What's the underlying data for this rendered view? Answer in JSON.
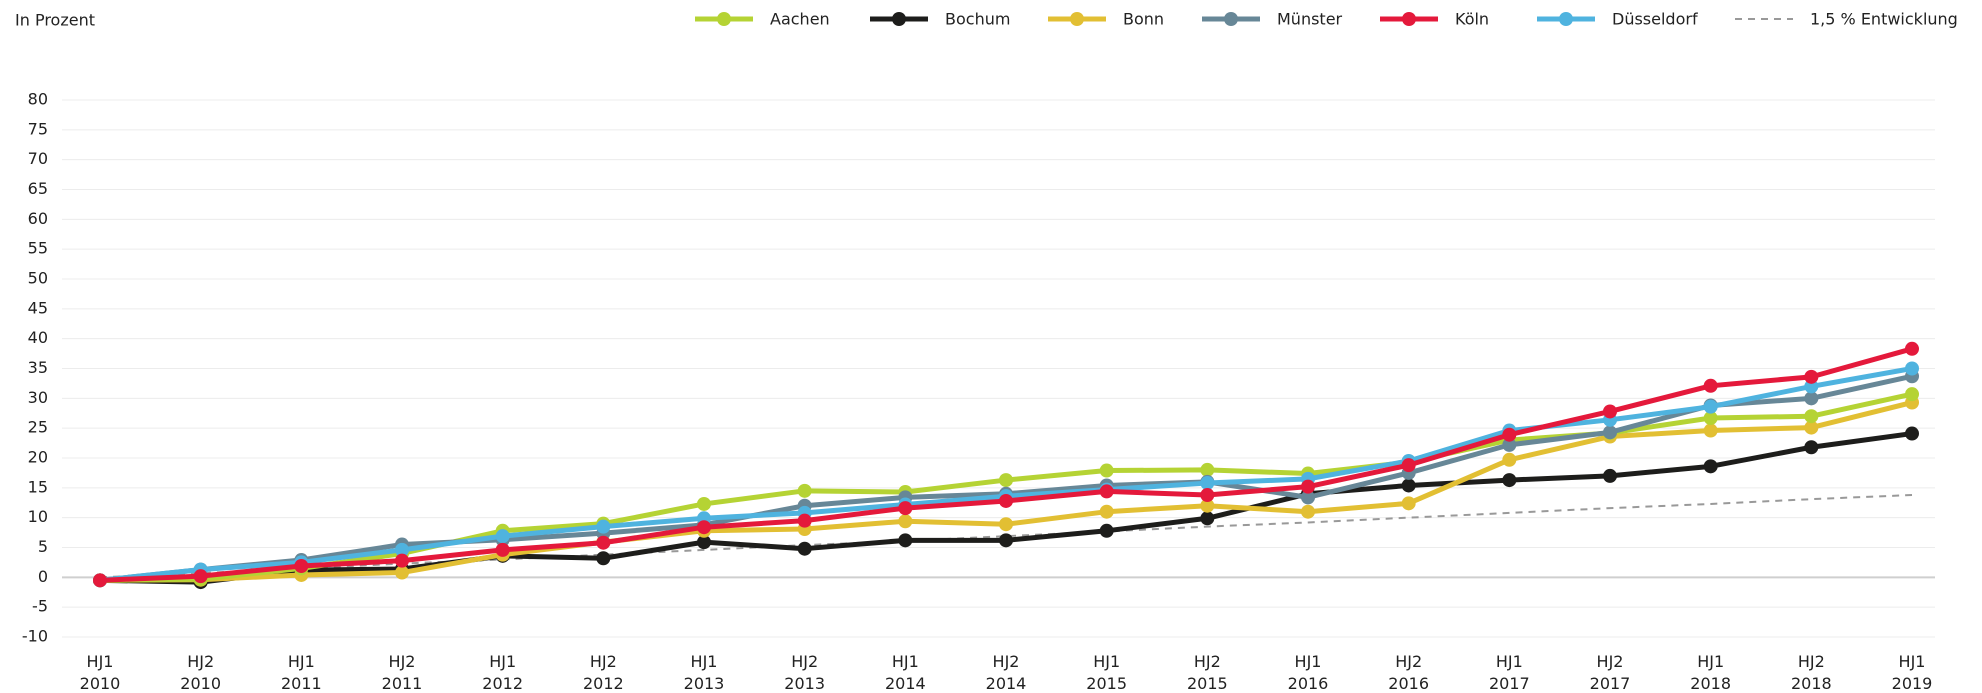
{
  "chart_data": {
    "type": "line",
    "y_label": "In Prozent",
    "categories": [
      [
        "HJ1",
        "2010"
      ],
      [
        "HJ2",
        "2010"
      ],
      [
        "HJ1",
        "2011"
      ],
      [
        "HJ2",
        "2011"
      ],
      [
        "HJ1",
        "2012"
      ],
      [
        "HJ2",
        "2012"
      ],
      [
        "HJ1",
        "2013"
      ],
      [
        "HJ2",
        "2013"
      ],
      [
        "HJ1",
        "2014"
      ],
      [
        "HJ2",
        "2014"
      ],
      [
        "HJ1",
        "2015"
      ],
      [
        "HJ2",
        "2015"
      ],
      [
        "HJ1",
        "2016"
      ],
      [
        "HJ2",
        "2016"
      ],
      [
        "HJ1",
        "2017"
      ],
      [
        "HJ2",
        "2017"
      ],
      [
        "HJ1",
        "2018"
      ],
      [
        "HJ2",
        "2018"
      ],
      [
        "HJ1",
        "2019"
      ]
    ],
    "series": [
      {
        "name": "1,5 % Entwicklung",
        "color": "#999999",
        "dashed": true,
        "markers": false,
        "values": [
          0,
          0.7,
          1.5,
          2.3,
          3.0,
          3.8,
          4.6,
          5.4,
          6.1,
          6.9,
          7.7,
          8.5,
          9.2,
          10.0,
          10.8,
          11.6,
          12.3,
          13.1,
          13.8
        ]
      },
      {
        "name": "Bochum",
        "color": "#1d1d1b",
        "values": [
          -0.5,
          -0.8,
          1.2,
          1.4,
          3.6,
          3.2,
          5.9,
          4.8,
          6.2,
          6.2,
          7.8,
          9.9,
          14,
          15.4,
          16.3,
          17,
          18.6,
          21.8,
          24.1
        ]
      },
      {
        "name": "Bonn",
        "color": "#e2bf33",
        "values": [
          -0.5,
          -0.4,
          0.4,
          0.8,
          3.8,
          5.9,
          7.8,
          8.1,
          9.4,
          8.9,
          11,
          12,
          11,
          12.4,
          19.7,
          23.6,
          24.6,
          25.1,
          29.3
        ]
      },
      {
        "name": "Aachen",
        "color": "#b5d334",
        "values": [
          -0.5,
          -0.3,
          1.5,
          4,
          7.8,
          9,
          12.3,
          14.5,
          14.3,
          16.3,
          17.9,
          18,
          17.4,
          19.3,
          23,
          24.2,
          26.7,
          27,
          30.7
        ]
      },
      {
        "name": "Münster",
        "color": "#678797",
        "values": [
          -0.5,
          1.3,
          2.9,
          5.5,
          6.3,
          7.4,
          8.8,
          12,
          13.4,
          14,
          15.4,
          16,
          13.4,
          17.5,
          22.2,
          24.3,
          28.8,
          30,
          33.7
        ]
      },
      {
        "name": "Düsseldorf",
        "color": "#4fb3df",
        "values": [
          -0.5,
          1.3,
          2.5,
          4.6,
          6.9,
          8.5,
          9.9,
          10.8,
          12.2,
          13.6,
          14.7,
          15.8,
          16.5,
          19.5,
          24.6,
          26.4,
          28.6,
          32,
          35
        ]
      },
      {
        "name": "Köln",
        "color": "#e4193b",
        "values": [
          -0.5,
          0.2,
          1.9,
          2.8,
          4.6,
          5.8,
          8.4,
          9.5,
          11.6,
          12.8,
          14.4,
          13.8,
          15.2,
          18.8,
          23.9,
          27.8,
          32.1,
          33.6,
          38.3
        ]
      }
    ],
    "legend_order": [
      3,
      1,
      2,
      4,
      6,
      5,
      0
    ],
    "ylim": [
      -10,
      80
    ],
    "yticks": [
      -10,
      -5,
      0,
      5,
      10,
      15,
      20,
      25,
      30,
      35,
      40,
      45,
      50,
      55,
      60,
      65,
      70,
      75,
      80
    ],
    "grid": true
  }
}
